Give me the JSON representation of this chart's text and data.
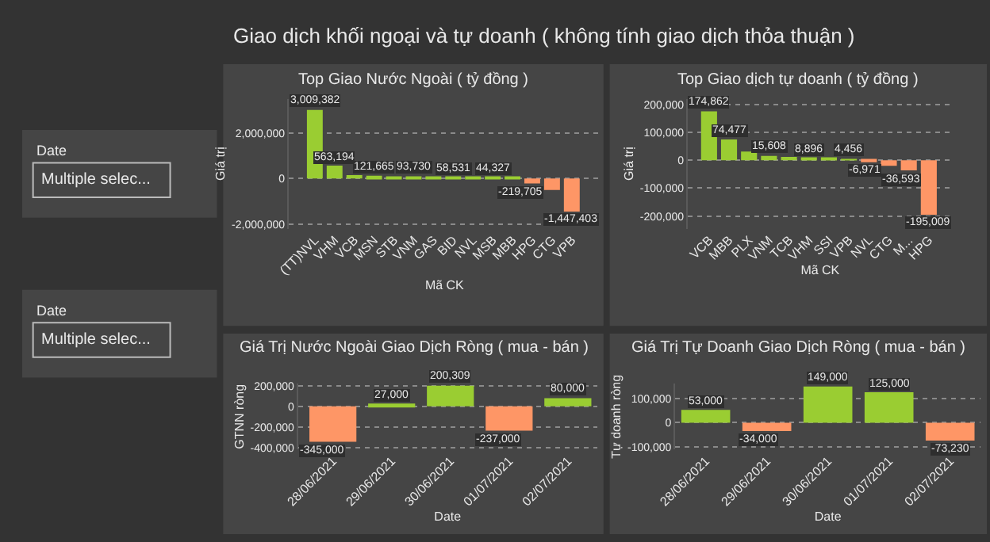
{
  "chart_data": [
    {
      "type": "bar",
      "title": "Top Giao Nước Ngoài ( tỷ đồng )",
      "xlabel": "Mã CK",
      "ylabel": "Giá trị",
      "annotations": [
        "Giao dịch khối ngoại và tự doanh ( không tính giao dịch thỏa thuận )",
        "Date",
        "Multiple selec...",
        "Date",
        "Multiple selec..."
      ],
      "categories": [
        "(TT)NVL",
        "VHM",
        "VCB",
        "MSN",
        "STB",
        "VNM",
        "GAS",
        "BID",
        "NVL",
        "MSB",
        "MBB",
        "HPG",
        "CTG",
        "VPB"
      ],
      "values": [
        3009382,
        563194,
        150000,
        121665,
        100000,
        93730,
        70000,
        58531,
        50000,
        44327,
        40000,
        -219705,
        -500000,
        -1447403
      ],
      "value_labels": [
        "3,009,382",
        "563,194",
        null,
        "121,665",
        null,
        "93,730",
        null,
        "58,531",
        null,
        "44,327",
        null,
        "-219,705",
        null,
        "-1,447,403"
      ],
      "colors": [
        "#9acd32",
        "#9acd32",
        "#9acd32",
        "#9acd32",
        "#9acd32",
        "#9acd32",
        "#9acd32",
        "#9acd32",
        "#9acd32",
        "#9acd32",
        "#9acd32",
        "#fe9666",
        "#fe9666",
        "#fe9666"
      ],
      "ylim": [
        -2200000,
        3500000
      ],
      "yticks": [
        {
          "value": -2000000,
          "label": "-2,000,000"
        },
        0,
        {
          "value": 2000000,
          "label": "2,000,000"
        }
      ],
      "grid": "y"
    },
    {
      "type": "bar",
      "title": "Top Giao dịch tự doanh ( tỷ đồng )",
      "xlabel": "Mã CK",
      "ylabel": "Giá trị",
      "categories": [
        "VCB",
        "MBB",
        "PLX",
        "VNM",
        "TCB",
        "VHM",
        "SSI",
        "VPB",
        "NVL",
        "CTG",
        "M...",
        "HPG"
      ],
      "values": [
        174862,
        74477,
        31000,
        15608,
        12000,
        8896,
        6000,
        4456,
        -6971,
        -20000,
        -36593,
        -195009
      ],
      "value_labels": [
        "174,862",
        "74,477",
        null,
        "15,608",
        null,
        "8,896",
        null,
        "4,456",
        "-6,971",
        null,
        "-36,593",
        "-195,009"
      ],
      "colors": [
        "#9acd32",
        "#9acd32",
        "#9acd32",
        "#9acd32",
        "#9acd32",
        "#9acd32",
        "#9acd32",
        "#9acd32",
        "#fe9666",
        "#fe9666",
        "#fe9666",
        "#fe9666"
      ],
      "ylim": [
        -245000,
        220000
      ],
      "yticks": [
        {
          "value": -200000,
          "label": "-200,000"
        },
        {
          "value": -100000,
          "label": "-100,000"
        },
        0,
        {
          "value": 100000,
          "label": "100,000"
        },
        {
          "value": 200000,
          "label": "200,000"
        }
      ],
      "grid": "y"
    },
    {
      "type": "bar",
      "title": "Giá Trị Nước Ngoài Giao Dịch Ròng ( mua - bán )",
      "xlabel": "Date",
      "ylabel": "GTNN ròng",
      "categories": [
        "28/06/2021",
        "29/06/2021",
        "30/06/2021",
        "01/07/2021",
        "02/07/2021"
      ],
      "values": [
        -345000,
        27000,
        200309,
        -237000,
        80000
      ],
      "value_labels": [
        "-345,000",
        "27,000",
        "200,309",
        "-237,000",
        "80,000"
      ],
      "colors": [
        "#fe9666",
        "#9acd32",
        "#9acd32",
        "#fe9666",
        "#9acd32"
      ],
      "ylim": [
        -420000,
        220000
      ],
      "yticks": [
        {
          "value": -400000,
          "label": "-400,000"
        },
        {
          "value": -200000,
          "label": "-200,000"
        },
        0,
        {
          "value": 200000,
          "label": "200,000"
        }
      ],
      "grid": "y"
    },
    {
      "type": "bar",
      "title": "Giá Trị Tự Doanh Giao Dịch Ròng ( mua - bán )",
      "xlabel": "Date",
      "ylabel": "Tự doanh ròng",
      "categories": [
        "28/06/2021",
        "29/06/2021",
        "30/06/2021",
        "01/07/2021",
        "02/07/2021"
      ],
      "values": [
        53000,
        -34000,
        149000,
        125000,
        -73230
      ],
      "value_labels": [
        "53,000",
        "-34,000",
        "149,000",
        "125,000",
        "-73,230"
      ],
      "colors": [
        "#9acd32",
        "#fe9666",
        "#9acd32",
        "#9acd32",
        "#fe9666"
      ],
      "ylim": [
        -110000,
        160000
      ],
      "yticks": [
        {
          "value": -100000,
          "label": "-100,000"
        },
        0,
        {
          "value": 100000,
          "label": "100,000"
        }
      ],
      "grid": "y"
    }
  ]
}
